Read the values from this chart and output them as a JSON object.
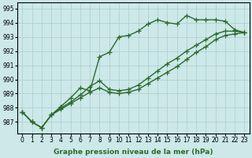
{
  "xlabel": "Graphe pression niveau de la mer (hPa)",
  "x": [
    0,
    1,
    2,
    3,
    4,
    5,
    6,
    7,
    8,
    9,
    10,
    11,
    12,
    13,
    14,
    15,
    16,
    17,
    18,
    19,
    20,
    21,
    22,
    23
  ],
  "line1": [
    987.7,
    987.0,
    986.6,
    987.5,
    988.1,
    988.7,
    989.4,
    989.2,
    991.6,
    991.9,
    993.0,
    993.1,
    993.4,
    993.9,
    994.2,
    994.0,
    993.9,
    994.5,
    994.2,
    994.2,
    994.2,
    994.1,
    993.5,
    993.3
  ],
  "line2": [
    987.7,
    987.0,
    986.6,
    987.5,
    988.0,
    988.4,
    988.9,
    989.5,
    989.9,
    989.3,
    989.2,
    989.3,
    989.6,
    990.1,
    990.6,
    991.1,
    991.5,
    992.0,
    992.4,
    992.8,
    993.2,
    993.4,
    993.4,
    993.3
  ],
  "line3": [
    987.7,
    987.0,
    986.6,
    987.5,
    987.9,
    988.3,
    988.7,
    989.1,
    989.4,
    989.1,
    989.0,
    989.1,
    989.3,
    989.7,
    990.1,
    990.5,
    990.9,
    991.4,
    991.9,
    992.3,
    992.8,
    993.1,
    993.2,
    993.3
  ],
  "ylim": [
    986.2,
    995.4
  ],
  "yticks": [
    987,
    988,
    989,
    990,
    991,
    992,
    993,
    994,
    995
  ],
  "line_color": "#2d6a2d",
  "bg_color": "#cce8e8",
  "grid_color": "#aacece",
  "marker": "+",
  "marker_size": 4,
  "linewidth": 1.0,
  "tick_fontsize": 5.5,
  "label_fontsize": 6.5
}
